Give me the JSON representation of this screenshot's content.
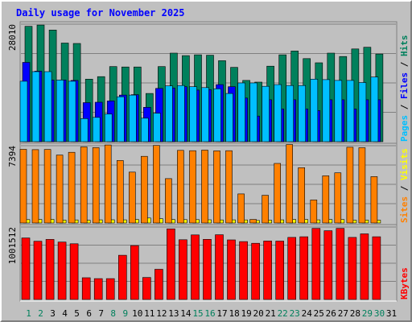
{
  "chart_data": {
    "type": "bar",
    "title": "Daily usage for November 2025",
    "categories": [
      "1",
      "2",
      "3",
      "4",
      "5",
      "6",
      "7",
      "8",
      "9",
      "10",
      "11",
      "12",
      "13",
      "14",
      "15",
      "16",
      "17",
      "18",
      "19",
      "20",
      "21",
      "22",
      "23",
      "24",
      "25",
      "26",
      "27",
      "28",
      "29",
      "30",
      "31"
    ],
    "weekend_days": [
      "1",
      "2",
      "8",
      "9",
      "15",
      "16",
      "22",
      "23",
      "29",
      "30"
    ],
    "panels": [
      {
        "name": "hits-files-pages",
        "ymax_label": "28010",
        "ymax": 28010,
        "side_labels": [
          "Pages",
          "Files",
          "Hits"
        ],
        "series": [
          {
            "name": "Hits",
            "color": "#00805c",
            "values": [
              27500,
              27800,
              26600,
              23500,
              23400,
              14900,
              15500,
              17900,
              17800,
              17800,
              11500,
              17900,
              21100,
              20500,
              20700,
              20600,
              19300,
              17700,
              14600,
              14200,
              18000,
              20700,
              21600,
              19800,
              18800,
              21100,
              20300,
              22100,
              22500,
              20900
            ]
          },
          {
            "name": "Files",
            "color": "#0000ff",
            "values": [
              18900,
              16800,
              14700,
              14700,
              14600,
              9300,
              9400,
              9700,
              11100,
              11200,
              8200,
              12700,
              12800,
              13100,
              12300,
              12400,
              13600,
              13100,
              10400,
              6100,
              10000,
              7800,
              10000,
              7800,
              7400,
              10000,
              10000,
              7800,
              10000,
              10000
            ]
          },
          {
            "name": "Pages",
            "color": "#00bfff",
            "values": [
              14400,
              16700,
              16700,
              14700,
              14400,
              5500,
              5800,
              6600,
              10700,
              11100,
              5600,
              6800,
              13300,
              13400,
              13100,
              12900,
              12600,
              11500,
              14000,
              14000,
              13200,
              13600,
              13400,
              13400,
              14900,
              14800,
              14600,
              14600,
              14100,
              15400
            ]
          }
        ]
      },
      {
        "name": "visits-sites",
        "ymax_label": "7394",
        "ymax": 7394,
        "side_labels": [
          "Sites",
          "Visits"
        ],
        "series": [
          {
            "name": "Visits",
            "color": "#ffff00",
            "values": [
              320,
              340,
              350,
              280,
              290,
              260,
              300,
              310,
              300,
              340,
              480,
              410,
              330,
              320,
              320,
              310,
              290,
              300,
              290,
              240,
              270,
              300,
              330,
              330,
              300,
              330,
              330,
              270,
              280,
              270
            ]
          },
          {
            "name": "Sites",
            "color": "#ff8000",
            "values": [
              7050,
              7020,
              7030,
              6500,
              6760,
              7280,
              7210,
              7460,
              5980,
              4870,
              6380,
              7420,
              4240,
              6950,
              6920,
              6970,
              6900,
              6920,
              2780,
              340,
              2650,
              5700,
              7500,
              5290,
              2200,
              4510,
              4800,
              7250,
              7200,
              4440
            ]
          }
        ]
      },
      {
        "name": "kbytes",
        "ymax_label": "1001512",
        "ymax": 1001512,
        "side_labels": [
          "KBytes"
        ],
        "series": [
          {
            "name": "KBytes",
            "color": "#ff0000",
            "values": [
              850000,
              805000,
              830000,
              793000,
              770000,
              300000,
              288000,
              288000,
              611000,
              744000,
              304000,
              417000,
              976000,
              826000,
              893000,
              831000,
              895000,
              823000,
              800000,
              777000,
              808000,
              807000,
              858000,
              867000,
              983000,
              950000,
              983000,
              858000,
              907000,
              867000
            ]
          }
        ]
      }
    ]
  }
}
